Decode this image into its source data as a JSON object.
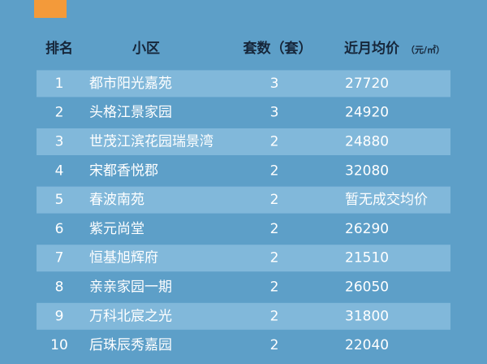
{
  "table": {
    "header": [
      "排名",
      "小区",
      "套数（套）",
      "近月均价"
    ],
    "price_unit": "（元/㎡）",
    "rows": [
      [
        1,
        "都市阳光嘉苑",
        3,
        27720
      ],
      [
        2,
        "头格江景家园",
        3,
        24920
      ],
      [
        3,
        "世茂江滨花园瑞景湾",
        2,
        24880
      ],
      [
        4,
        "宋都香悦郡",
        2,
        32080
      ],
      [
        5,
        "春波南苑",
        2,
        "暂无成交均价"
      ],
      [
        6,
        "紫元尚堂",
        2,
        26290
      ],
      [
        7,
        "恒基旭辉府",
        2,
        21510
      ],
      [
        8,
        "亲亲家园一期",
        2,
        26050
      ],
      [
        9,
        "万科北宸之光",
        2,
        31800
      ],
      [
        10,
        "后珠辰秀嘉园",
        2,
        22040
      ]
    ]
  }
}
